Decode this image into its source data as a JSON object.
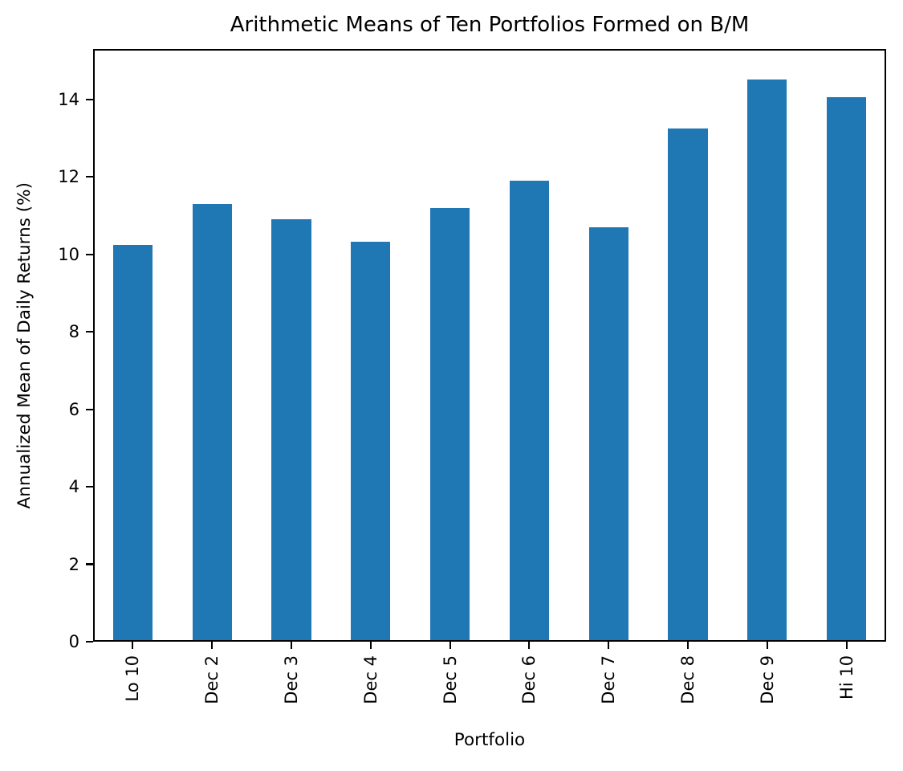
{
  "chart_data": {
    "type": "bar",
    "title": "Arithmetic Means of Ten Portfolios Formed on B/M",
    "xlabel": "Portfolio",
    "ylabel": "Annualized Mean of Daily Returns (%)",
    "categories": [
      "Lo 10",
      "Dec 2",
      "Dec 3",
      "Dec 4",
      "Dec 5",
      "Dec 6",
      "Dec 7",
      "Dec 8",
      "Dec 9",
      "Hi 10"
    ],
    "values": [
      10.25,
      11.3,
      10.9,
      10.33,
      11.2,
      11.9,
      10.7,
      13.24,
      14.52,
      14.06
    ],
    "yticks": [
      0,
      2,
      4,
      6,
      8,
      10,
      12,
      14
    ],
    "ylim": [
      0,
      15.3
    ],
    "bar_color": "#1f77b4",
    "bar_width_fraction": 0.5,
    "x_tick_rotation": 90,
    "grid": false,
    "legend": "none",
    "background_color": "#ffffff",
    "axis_color": "#000000"
  }
}
